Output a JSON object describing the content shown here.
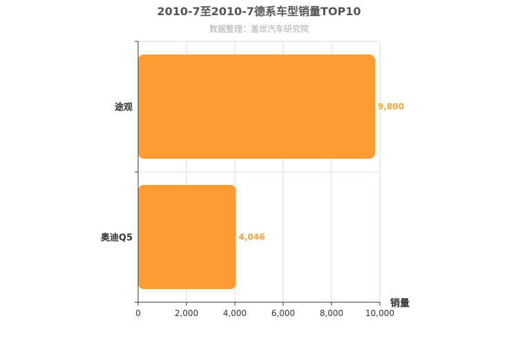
{
  "chart_data": {
    "type": "bar",
    "orientation": "horizontal",
    "title": "2010-7至2010-7德系车型销量TOP10",
    "subtitle": "数据整理：盖世汽车研究院",
    "xlabel": "销量",
    "ylabel": "",
    "categories": [
      "途观",
      "奥迪Q5"
    ],
    "values": [
      9800,
      4046
    ],
    "value_labels": [
      "9,800",
      "4,046"
    ],
    "xlim": [
      0,
      10000
    ],
    "x_ticks": [
      0,
      2000,
      4000,
      6000,
      8000,
      10000
    ],
    "x_tick_labels": [
      "0",
      "2,000",
      "4,000",
      "6,000",
      "8,000",
      "10,000"
    ],
    "grid": true,
    "colors": {
      "bar": "#FF9C33",
      "value_label": "#F7A23B",
      "title": "#555555",
      "subtitle": "#AAAAAA",
      "axis": "#333333",
      "grid": "#DDDDDD"
    }
  }
}
